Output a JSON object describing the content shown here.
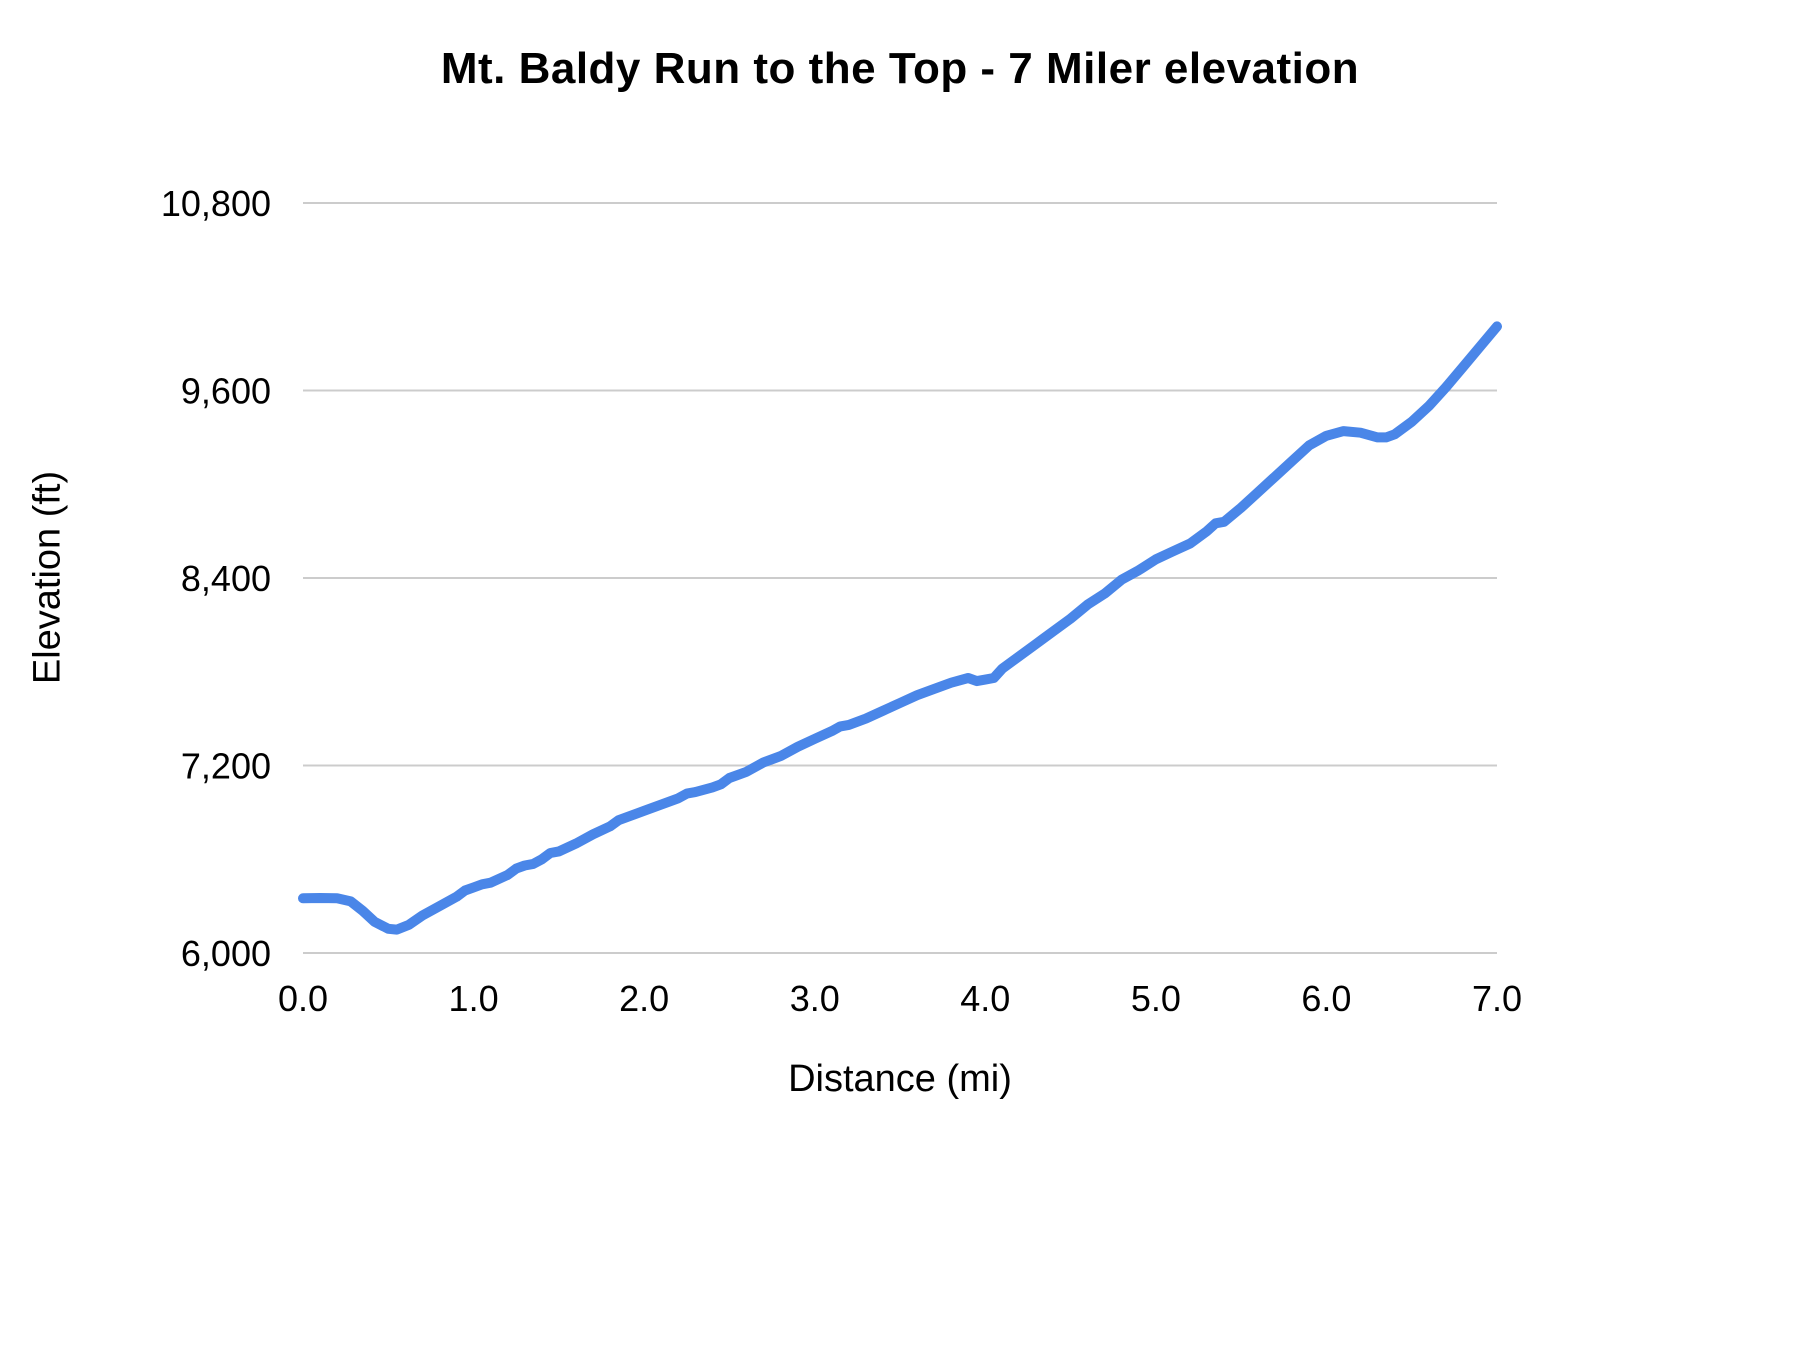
{
  "chart_data": {
    "type": "line",
    "title": "Mt. Baldy Run to the Top - 7 Miler elevation",
    "xlabel": "Distance (mi)",
    "ylabel": "Elevation (ft)",
    "xlim": [
      0.0,
      7.0
    ],
    "ylim": [
      6000,
      10800
    ],
    "grid": "horizontal",
    "legend": "none",
    "line_color": "#4a86e8",
    "gridline_color": "#cccccc",
    "x_ticks": [
      {
        "value": 0.0,
        "label": "0.0"
      },
      {
        "value": 1.0,
        "label": "1.0"
      },
      {
        "value": 2.0,
        "label": "2.0"
      },
      {
        "value": 3.0,
        "label": "3.0"
      },
      {
        "value": 4.0,
        "label": "4.0"
      },
      {
        "value": 5.0,
        "label": "5.0"
      },
      {
        "value": 6.0,
        "label": "6.0"
      },
      {
        "value": 7.0,
        "label": "7.0"
      }
    ],
    "y_ticks": [
      {
        "value": 6000,
        "label": "6,000"
      },
      {
        "value": 7200,
        "label": "7,200"
      },
      {
        "value": 8400,
        "label": "8,400"
      },
      {
        "value": 9600,
        "label": "9,600"
      },
      {
        "value": 10800,
        "label": "10,800"
      }
    ],
    "series": [
      {
        "name": "Elevation",
        "x": [
          0.0,
          0.1,
          0.2,
          0.28,
          0.35,
          0.42,
          0.5,
          0.55,
          0.62,
          0.7,
          0.8,
          0.9,
          0.95,
          1.0,
          1.05,
          1.1,
          1.2,
          1.25,
          1.3,
          1.35,
          1.4,
          1.45,
          1.5,
          1.6,
          1.7,
          1.8,
          1.85,
          1.9,
          2.0,
          2.1,
          2.2,
          2.25,
          2.3,
          2.4,
          2.45,
          2.5,
          2.6,
          2.7,
          2.8,
          2.9,
          3.0,
          3.1,
          3.15,
          3.2,
          3.3,
          3.4,
          3.5,
          3.6,
          3.7,
          3.8,
          3.9,
          3.95,
          4.0,
          4.05,
          4.1,
          4.2,
          4.3,
          4.4,
          4.5,
          4.6,
          4.7,
          4.8,
          4.9,
          5.0,
          5.1,
          5.2,
          5.3,
          5.35,
          5.4,
          5.5,
          5.6,
          5.7,
          5.8,
          5.9,
          6.0,
          6.1,
          6.2,
          6.3,
          6.35,
          6.4,
          6.5,
          6.6,
          6.7,
          6.8,
          6.9,
          7.0
        ],
        "y": [
          6350,
          6352,
          6350,
          6330,
          6270,
          6200,
          6155,
          6150,
          6180,
          6240,
          6300,
          6360,
          6400,
          6420,
          6440,
          6450,
          6500,
          6540,
          6560,
          6570,
          6600,
          6640,
          6650,
          6700,
          6760,
          6810,
          6850,
          6870,
          6910,
          6950,
          6990,
          7020,
          7030,
          7060,
          7080,
          7120,
          7160,
          7220,
          7260,
          7320,
          7370,
          7420,
          7450,
          7460,
          7500,
          7550,
          7600,
          7650,
          7690,
          7730,
          7760,
          7740,
          7750,
          7760,
          7820,
          7900,
          7980,
          8060,
          8140,
          8230,
          8300,
          8390,
          8450,
          8520,
          8570,
          8620,
          8700,
          8750,
          8760,
          8850,
          8950,
          9050,
          9150,
          9250,
          9310,
          9340,
          9330,
          9300,
          9300,
          9320,
          9400,
          9500,
          9620,
          9750,
          9880,
          10010
        ]
      }
    ]
  }
}
